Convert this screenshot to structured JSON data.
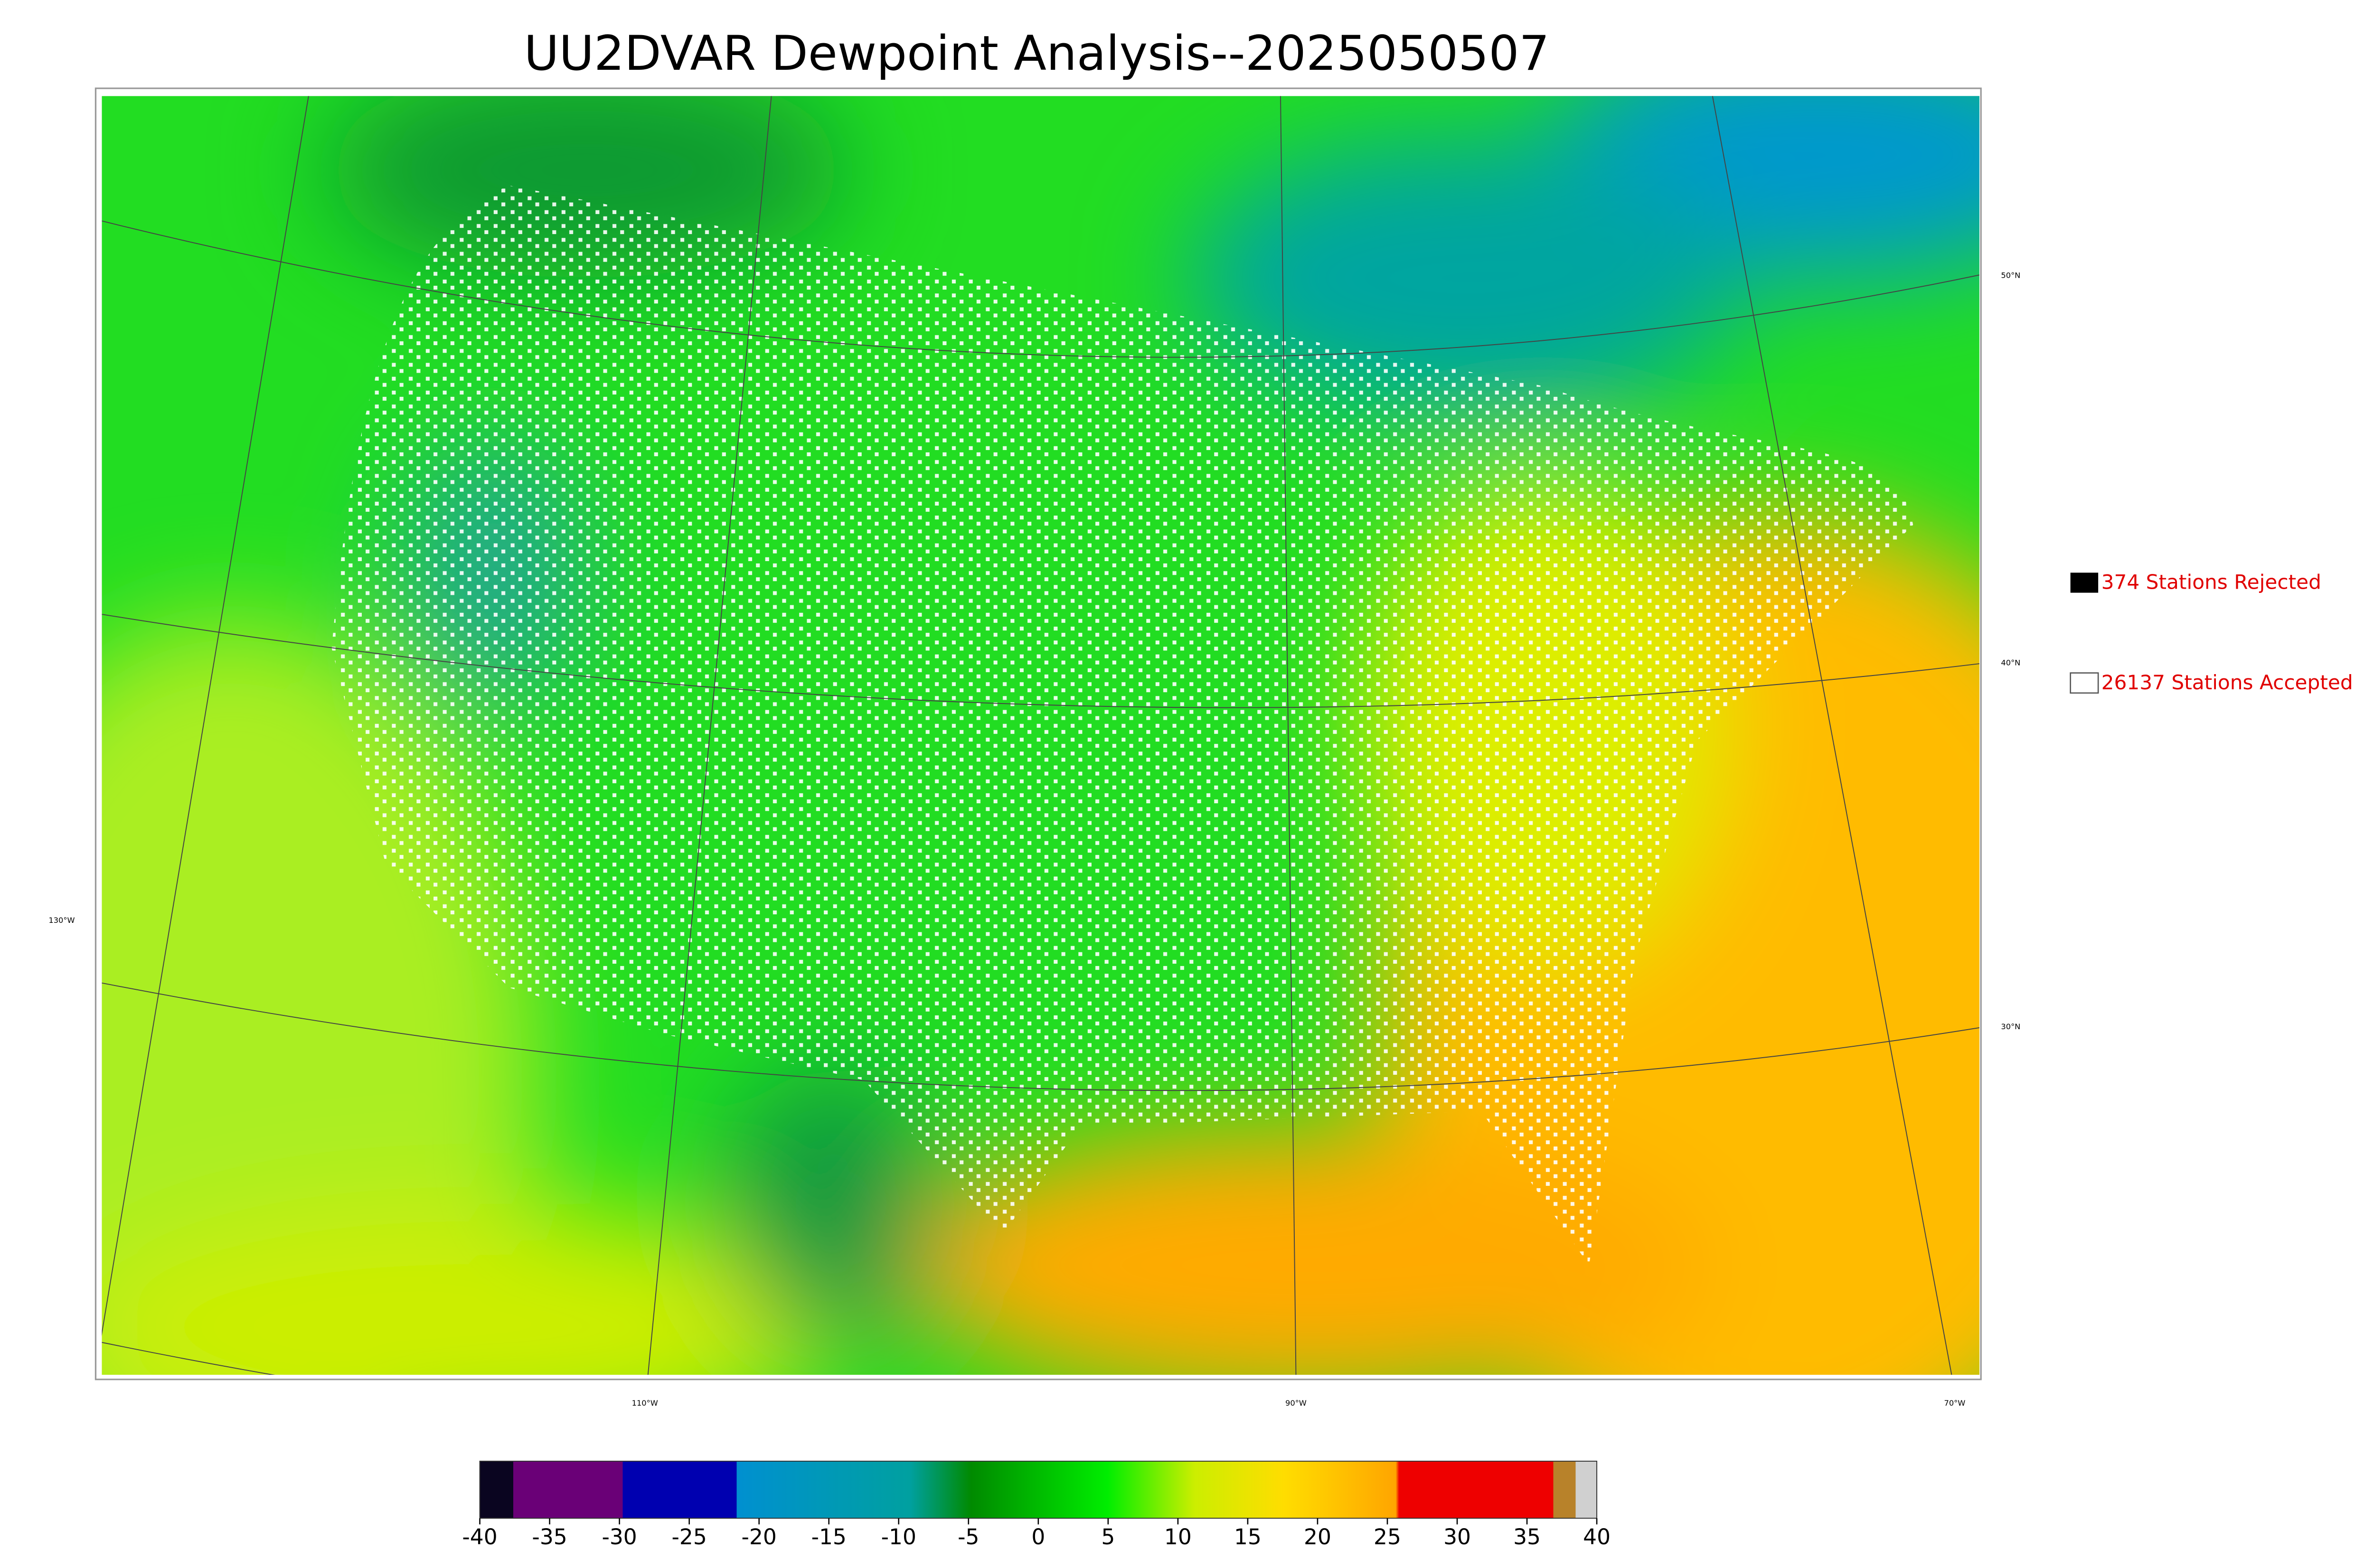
{
  "header": {
    "title": "UU2DVAR Dewpoint Analysis--2025050507"
  },
  "legend": [
    {
      "label": "374 Stations Rejected"
    },
    {
      "label": "26137 Stations Accepted"
    }
  ],
  "map": {
    "lat_labels": [
      "50°N",
      "40°N",
      "30°N"
    ],
    "lon_labels": [
      "130°W",
      "110°W",
      "90°W",
      "70°W"
    ]
  },
  "colorbar": {
    "clim": [
      -40,
      40
    ],
    "ticks": [
      -40,
      -35,
      -30,
      -25,
      -20,
      -15,
      -10,
      -5,
      0,
      5,
      10,
      15,
      20,
      25,
      30,
      35,
      40
    ]
  }
}
